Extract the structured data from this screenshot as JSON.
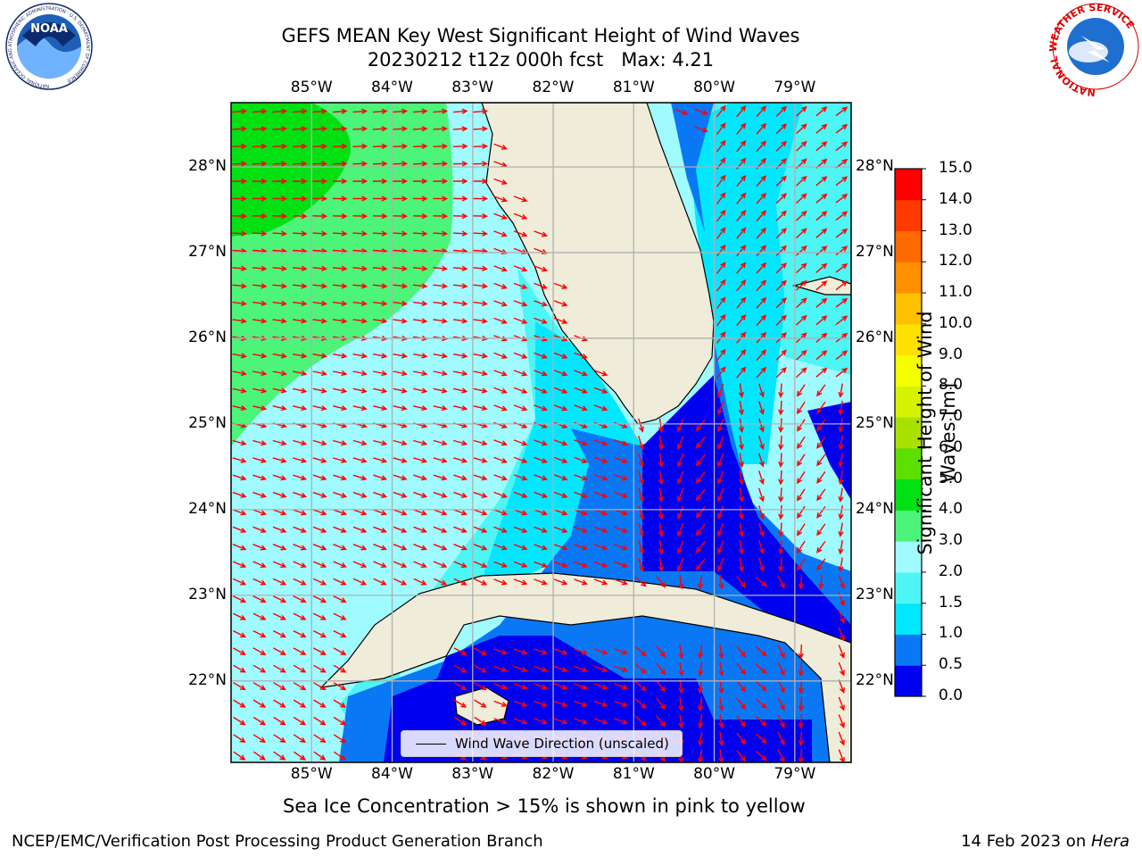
{
  "header": {
    "title_line1": "GEFS MEAN Key West Significant Height of Wind Waves",
    "title_line2": "20230212 t12z 000h fcst   Max: 4.21"
  },
  "axes": {
    "lon_labels": [
      "85°W",
      "84°W",
      "83°W",
      "82°W",
      "81°W",
      "80°W",
      "79°W"
    ],
    "lon_values": [
      -85,
      -84,
      -83,
      -82,
      -81,
      -80,
      -79
    ],
    "lat_labels": [
      "28°N",
      "27°N",
      "26°N",
      "25°N",
      "24°N",
      "23°N",
      "22°N"
    ],
    "lat_values": [
      28,
      27,
      26,
      25,
      24,
      23,
      22
    ],
    "lon_range": [
      -86.0,
      -78.3
    ],
    "lat_range": [
      21.05,
      28.75
    ]
  },
  "colorbar": {
    "label": "Significant Height of Wind Waves [m]",
    "ticks": [
      "15.0",
      "14.0",
      "13.0",
      "12.0",
      "11.0",
      "10.0",
      "9.0",
      "8.0",
      "7.0",
      "6.0",
      "5.0",
      "4.0",
      "3.0",
      "2.0",
      "1.5",
      "1.0",
      "0.5",
      "0.0"
    ],
    "levels": [
      0,
      0.5,
      1.0,
      1.5,
      2.0,
      3.0,
      4.0,
      5.0,
      6.0,
      7.0,
      8.0,
      9.0,
      10.0,
      11.0,
      12.0,
      13.0,
      14.0,
      15.0
    ],
    "colors": [
      "#0000f0",
      "#0a78f5",
      "#00e8ff",
      "#4df5f5",
      "#9ffbff",
      "#4cf57a",
      "#00e012",
      "#5ce000",
      "#a8e000",
      "#d6f200",
      "#f5ff00",
      "#ffe000",
      "#ffc000",
      "#ff9000",
      "#ff6a00",
      "#ff3a00",
      "#ff0000"
    ]
  },
  "legend": {
    "label": "Wind Wave Direction (unscaled)"
  },
  "notes": {
    "sea_ice": "Sea Ice Concentration > 15% is shown in pink to yellow",
    "branch": "NCEP/EMC/Verification Post Processing Product Generation Branch",
    "date_prefix": "14 Feb 2023 on ",
    "host": "Hera"
  },
  "logos": {
    "noaa": "NOAA",
    "noaa_ring": "NATIONAL OCEANIC AND ATMOSPHERIC ADMINISTRATION · U.S. DEPARTMENT OF COMMERCE",
    "nws": "NATIONAL WEATHER SERVICE"
  },
  "colors": {
    "land": "#efedd9",
    "arrow": "#ff0000",
    "grid": "#b0b0b0"
  }
}
